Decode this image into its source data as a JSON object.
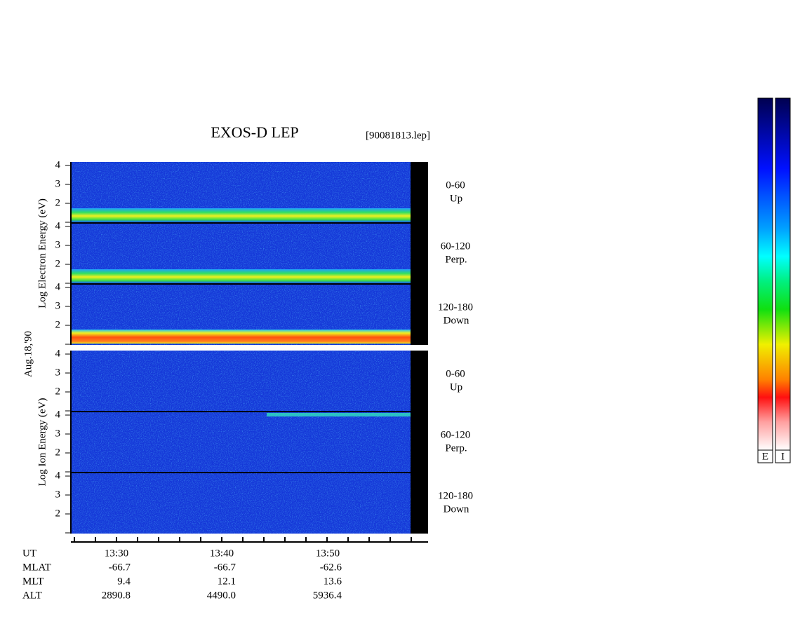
{
  "header": {
    "title": "EXOS-D LEP",
    "file": "[90081813.lep]",
    "date": "Aug.18,'90"
  },
  "panels": [
    {
      "ylabel": "Log  Electron  Energy (eV)",
      "rows": [
        {
          "angle": "0-60",
          "direction": "Up"
        },
        {
          "angle": "60-120",
          "direction": "Perp."
        },
        {
          "angle": "120-180",
          "direction": "Down"
        }
      ]
    },
    {
      "ylabel": "Log  Ion  Energy (eV)",
      "rows": [
        {
          "angle": "0-60",
          "direction": "Up"
        },
        {
          "angle": "60-120",
          "direction": "Perp."
        },
        {
          "angle": "120-180",
          "direction": "Down"
        }
      ]
    }
  ],
  "energy_ticks": [
    "4",
    "3",
    "2"
  ],
  "ephemeris": [
    {
      "name": "UT",
      "values": [
        "13:30",
        "13:40",
        "13:50"
      ]
    },
    {
      "name": "MLAT",
      "values": [
        "-66.7",
        "-66.7",
        "-62.6"
      ]
    },
    {
      "name": "MLT",
      "values": [
        "9.4",
        "12.1",
        "13.6"
      ]
    },
    {
      "name": "ALT",
      "values": [
        "2890.8",
        "4490.0",
        "5936.4"
      ]
    }
  ],
  "colorbars": [
    "E",
    "I"
  ]
}
